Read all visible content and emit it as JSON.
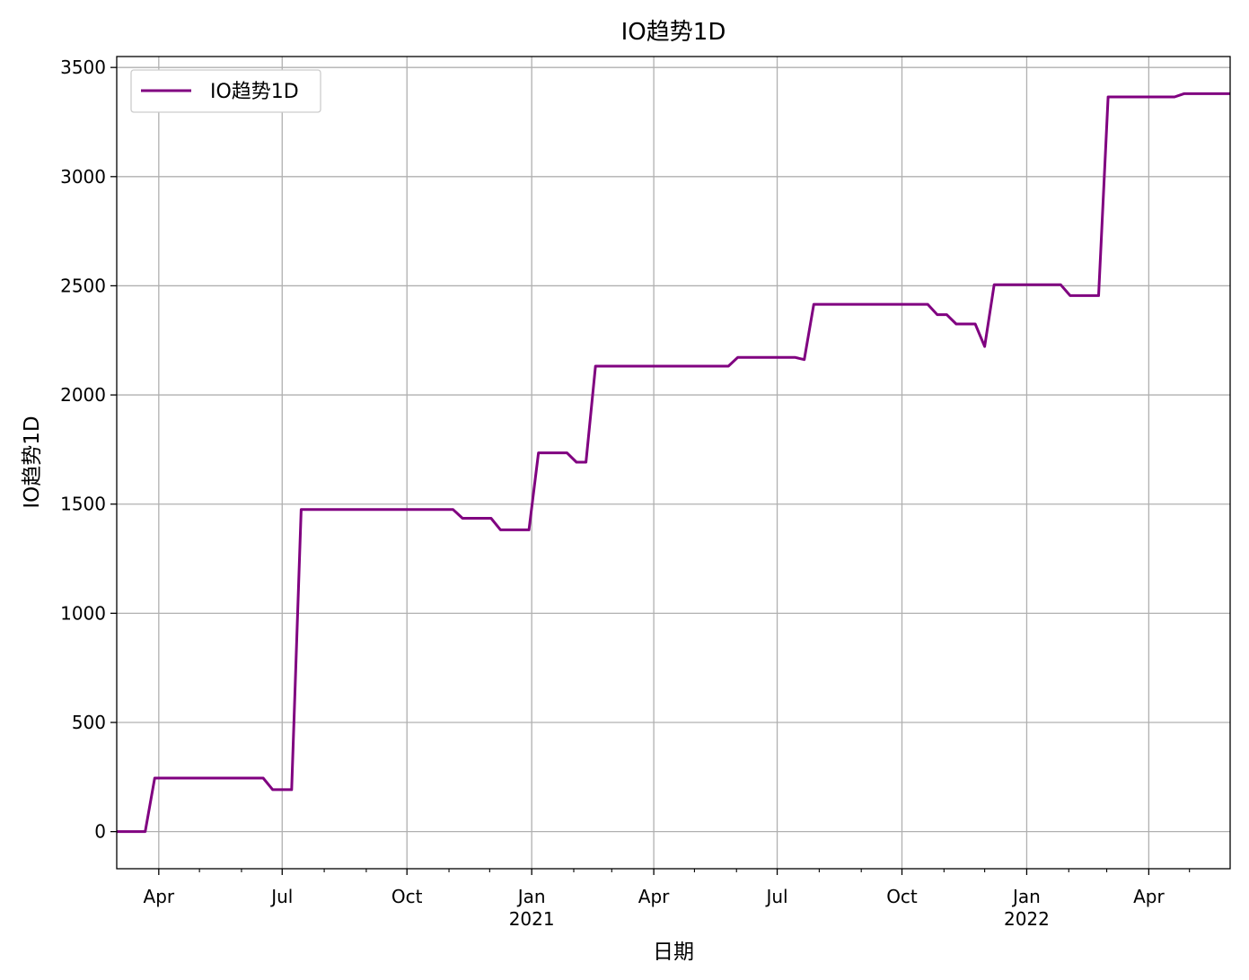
{
  "chart_data": {
    "type": "line",
    "title": "IO趋势1D",
    "xlabel": "日期",
    "ylabel": "IO趋势1D",
    "ylim": [
      -170,
      3550
    ],
    "xlim": [
      "2020-03-01",
      "2022-05-31"
    ],
    "grid": true,
    "legend_position": "top-left",
    "yticks": [
      0,
      500,
      1000,
      1500,
      2000,
      2500,
      3000,
      3500
    ],
    "xticks": [
      {
        "date": "2020-04-01",
        "label": "Apr",
        "year": ""
      },
      {
        "date": "2020-07-01",
        "label": "Jul",
        "year": ""
      },
      {
        "date": "2020-10-01",
        "label": "Oct",
        "year": ""
      },
      {
        "date": "2021-01-01",
        "label": "Jan",
        "year": "2021"
      },
      {
        "date": "2021-04-01",
        "label": "Apr",
        "year": ""
      },
      {
        "date": "2021-07-01",
        "label": "Jul",
        "year": ""
      },
      {
        "date": "2021-10-01",
        "label": "Oct",
        "year": ""
      },
      {
        "date": "2022-01-01",
        "label": "Jan",
        "year": "2022"
      },
      {
        "date": "2022-04-01",
        "label": "Apr",
        "year": ""
      }
    ],
    "minor_xticks": [
      "2020-05-01",
      "2020-06-01",
      "2020-08-01",
      "2020-09-01",
      "2020-11-01",
      "2020-12-01",
      "2021-02-01",
      "2021-03-01",
      "2021-05-01",
      "2021-06-01",
      "2021-08-01",
      "2021-09-01",
      "2021-11-01",
      "2021-12-01",
      "2022-02-01",
      "2022-03-01",
      "2022-05-01"
    ],
    "series": [
      {
        "name": "IO趋势1D",
        "color": "#800080",
        "points": [
          [
            "2020-03-01",
            0
          ],
          [
            "2020-03-22",
            0
          ],
          [
            "2020-03-29",
            245
          ],
          [
            "2020-06-17",
            245
          ],
          [
            "2020-06-24",
            192
          ],
          [
            "2020-07-08",
            192
          ],
          [
            "2020-07-15",
            1475
          ],
          [
            "2020-11-04",
            1475
          ],
          [
            "2020-11-11",
            1435
          ],
          [
            "2020-12-02",
            1435
          ],
          [
            "2020-12-09",
            1382
          ],
          [
            "2020-12-30",
            1382
          ],
          [
            "2021-01-06",
            1735
          ],
          [
            "2021-01-27",
            1735
          ],
          [
            "2021-02-03",
            1692
          ],
          [
            "2021-02-10",
            1692
          ],
          [
            "2021-02-17",
            2132
          ],
          [
            "2021-05-26",
            2132
          ],
          [
            "2021-06-02",
            2172
          ],
          [
            "2021-07-14",
            2172
          ],
          [
            "2021-07-21",
            2162
          ],
          [
            "2021-07-28",
            2415
          ],
          [
            "2021-10-20",
            2415
          ],
          [
            "2021-10-27",
            2368
          ],
          [
            "2021-11-03",
            2368
          ],
          [
            "2021-11-10",
            2325
          ],
          [
            "2021-11-24",
            2325
          ],
          [
            "2021-12-01",
            2222
          ],
          [
            "2021-12-08",
            2505
          ],
          [
            "2022-01-26",
            2505
          ],
          [
            "2022-02-02",
            2455
          ],
          [
            "2022-02-23",
            2455
          ],
          [
            "2022-03-02",
            3365
          ],
          [
            "2022-04-20",
            3365
          ],
          [
            "2022-04-27",
            3380
          ],
          [
            "2022-05-31",
            3380
          ]
        ]
      }
    ]
  }
}
